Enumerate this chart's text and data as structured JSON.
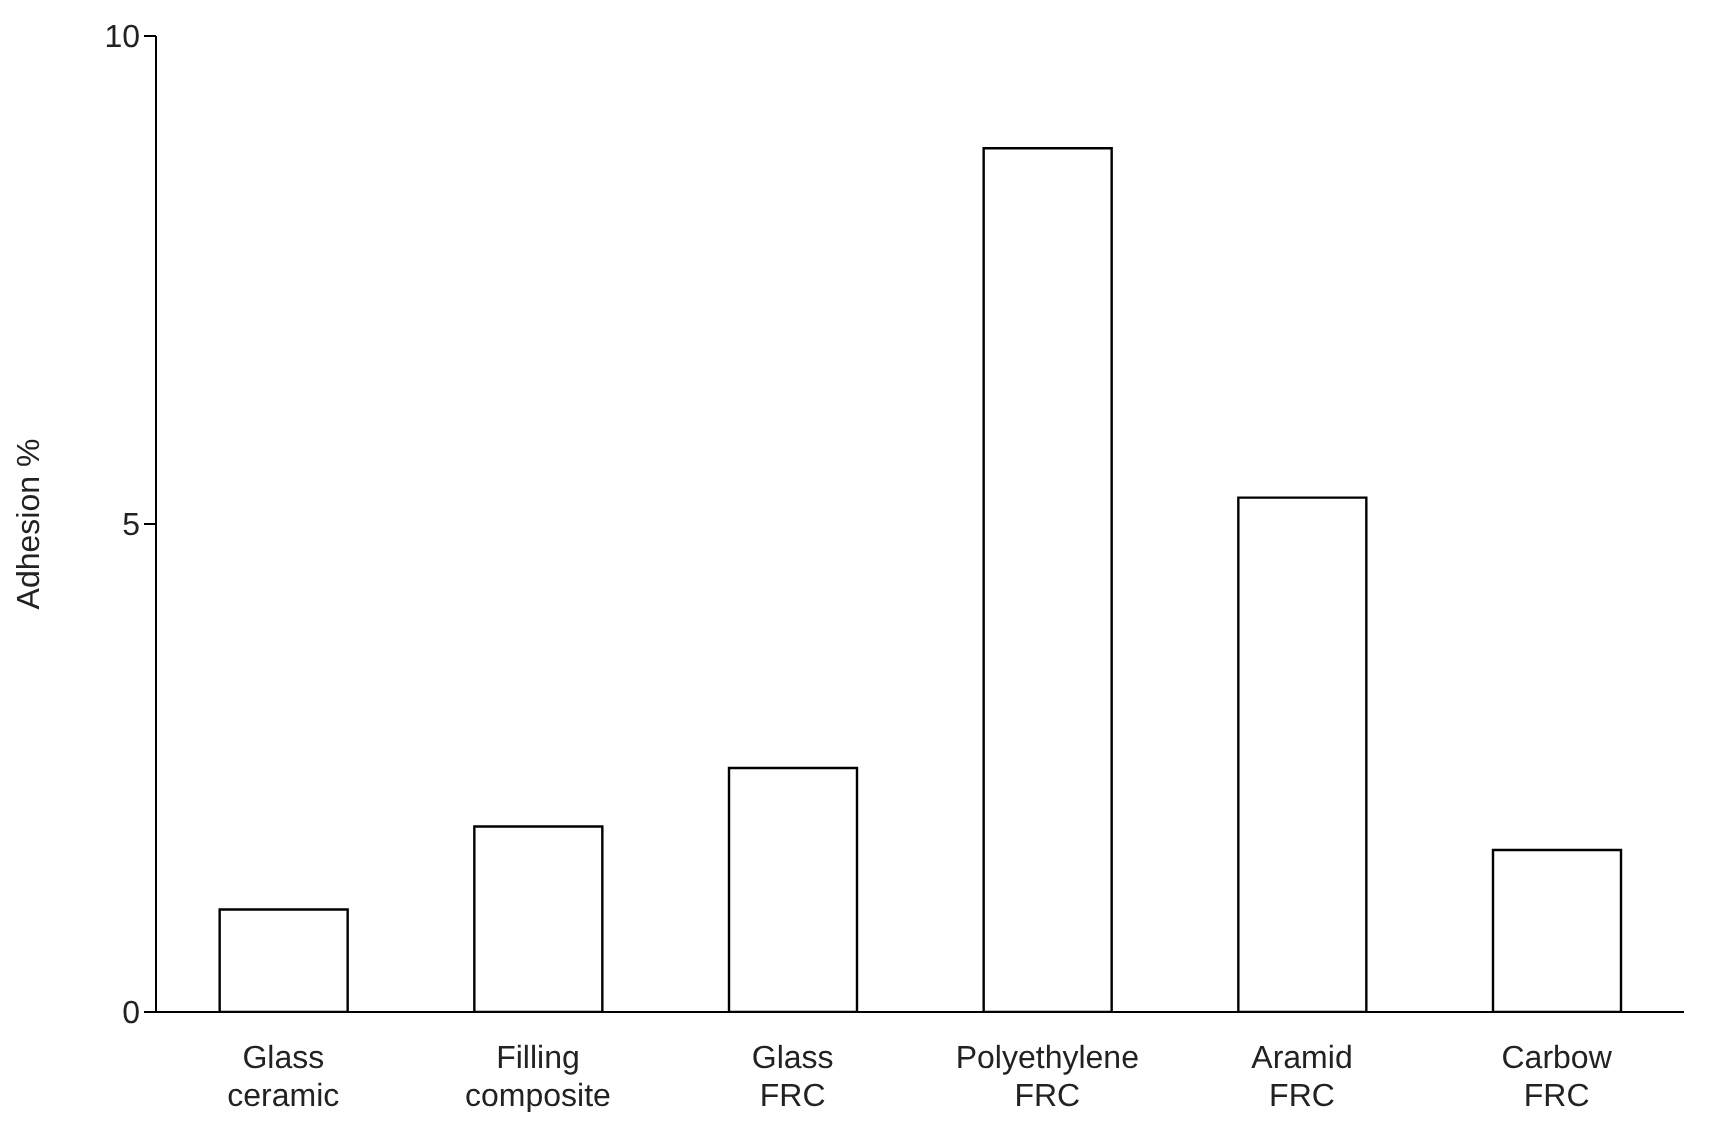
{
  "chart_data": {
    "type": "bar",
    "ylabel": "Adhesion %",
    "categories": [
      "Glass ceramic",
      "Filling composite",
      "Glass FRC",
      "Polyethylene FRC",
      "Aramid FRC",
      "Carbow FRC"
    ],
    "values": [
      1.05,
      1.9,
      2.5,
      8.85,
      5.27,
      1.66
    ],
    "color": "#ffffff",
    "ylim": [
      0,
      10
    ],
    "yticks": [
      0,
      5,
      10
    ],
    "grid": false
  }
}
